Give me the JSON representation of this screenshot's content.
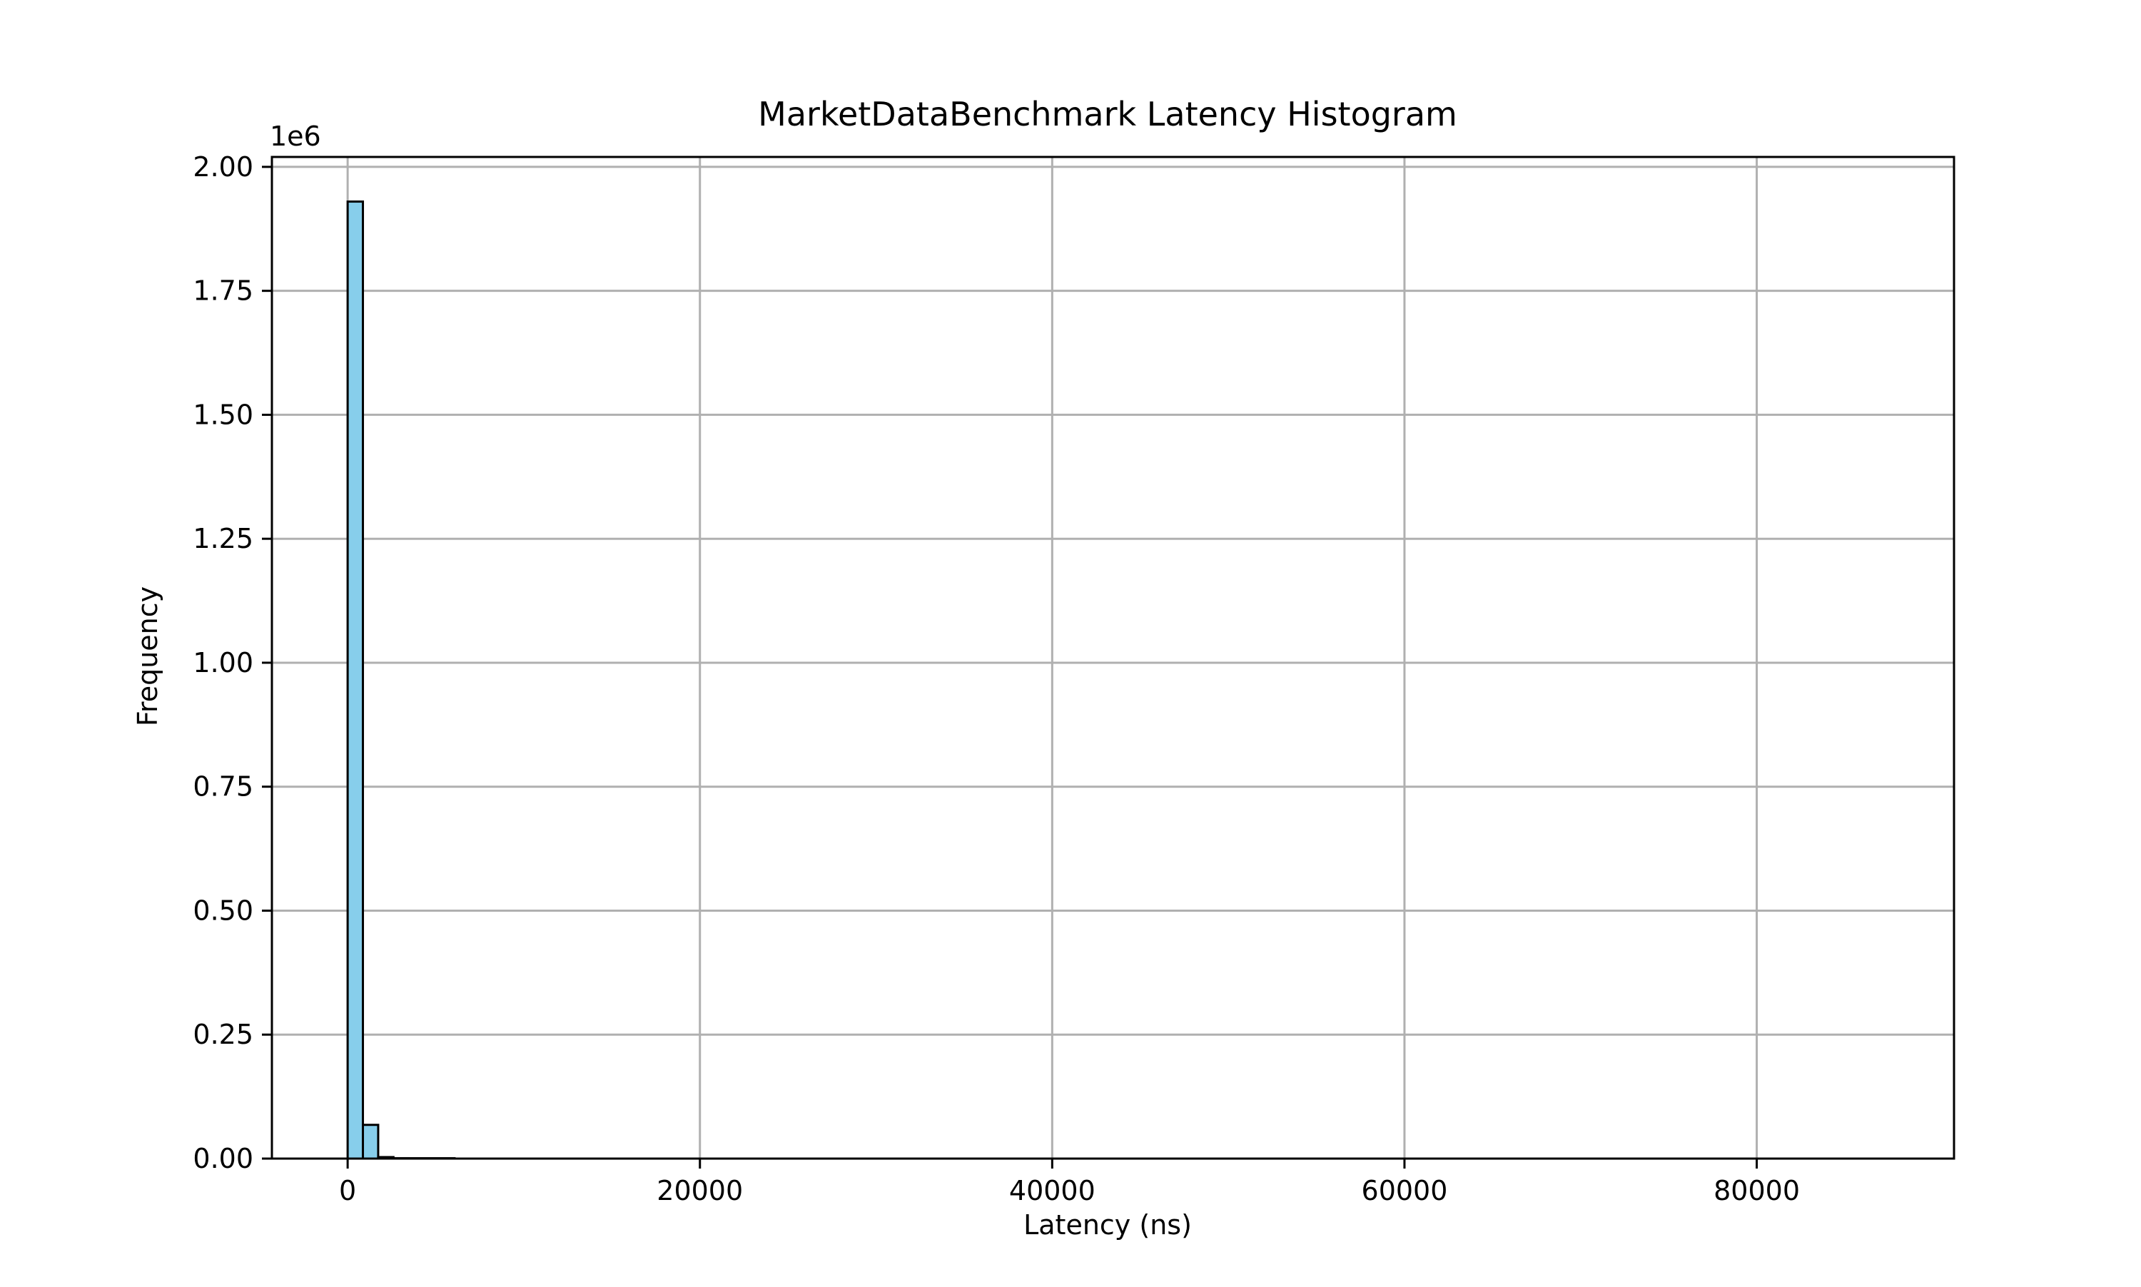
{
  "chart_data": {
    "type": "bar",
    "title": "MarketDataBenchmark Latency Histogram",
    "xlabel": "Latency (ns)",
    "ylabel": "Frequency",
    "y_offset_text": "1e6",
    "xlim": [
      -4300,
      91200
    ],
    "ylim": [
      0,
      2020000
    ],
    "x_ticks": [
      0,
      20000,
      40000,
      60000,
      80000
    ],
    "x_tick_labels": [
      "0",
      "20000",
      "40000",
      "60000",
      "80000"
    ],
    "y_ticks": [
      0,
      250000,
      500000,
      750000,
      1000000,
      1250000,
      1500000,
      1750000,
      2000000
    ],
    "y_tick_labels": [
      "0.00",
      "0.25",
      "0.50",
      "0.75",
      "1.00",
      "1.25",
      "1.50",
      "1.75",
      "2.00"
    ],
    "grid": true,
    "bin_width": 867,
    "bin_start": 0,
    "x": [
      0,
      867,
      1734,
      2601,
      3468,
      4335,
      5202
    ],
    "values": [
      1930000,
      68000,
      3000,
      800,
      300,
      150,
      80
    ],
    "tail_extent": 86700,
    "colors": {
      "bar_fill": "#87ceeb",
      "bar_edge": "#000000",
      "grid": "#b0b0b0",
      "axis": "#000000"
    }
  }
}
